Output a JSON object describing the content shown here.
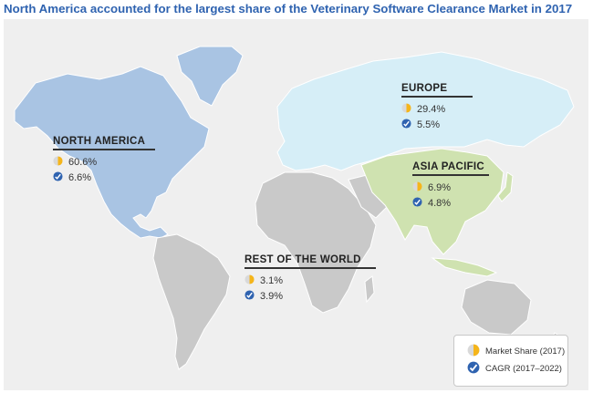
{
  "title": "North America accounted for the largest share of the Veterinary Software Clearance Market in 2017",
  "regions": {
    "north_america": {
      "name": "NORTH AMERICA",
      "share": "60.6%",
      "cagr": "6.6%"
    },
    "europe": {
      "name": "EUROPE",
      "share": "29.4%",
      "cagr": "5.5%"
    },
    "asia_pacific": {
      "name": "ASIA PACIFIC",
      "share": "6.9%",
      "cagr": "4.8%"
    },
    "rest_of_world": {
      "name": "REST OF THE WORLD",
      "share": "3.1%",
      "cagr": "3.9%"
    }
  },
  "legend": {
    "share_label": "Market Share (2017)",
    "cagr_label": "CAGR (2017–2022)"
  },
  "colors": {
    "title": "#2f63b0",
    "north_america": "#a9c4e3",
    "europe": "#d6eef7",
    "asia_pacific": "#cfe2b0",
    "rest_of_world": "#c9c9c9",
    "share_icon": "#f5b51a",
    "cagr_icon": "#2f63b0"
  },
  "icons": {
    "share": "pie-chart-icon",
    "cagr": "growth-check-icon"
  }
}
